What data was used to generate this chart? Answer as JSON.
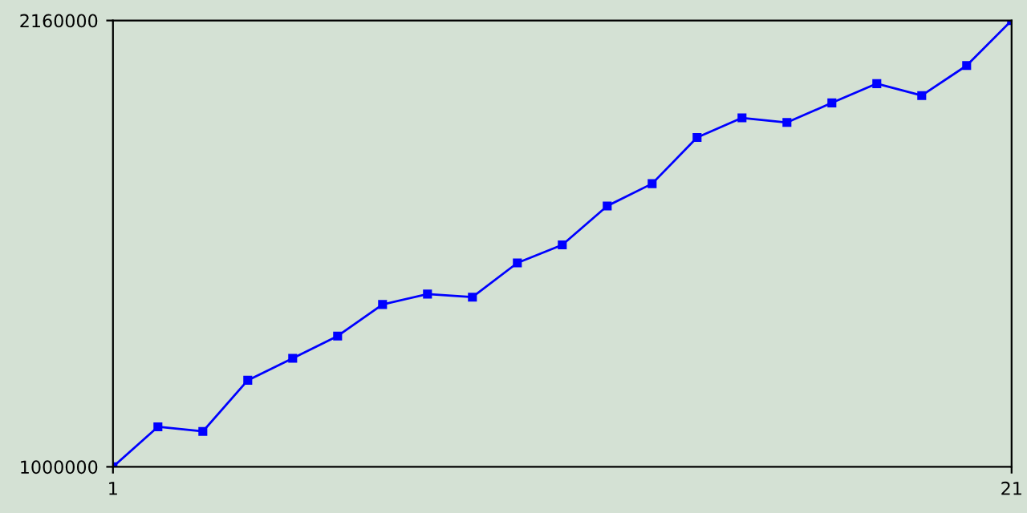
{
  "chart_data": {
    "type": "line",
    "x": [
      1,
      2,
      3,
      4,
      5,
      6,
      7,
      8,
      9,
      10,
      11,
      12,
      13,
      14,
      15,
      16,
      17,
      18,
      19,
      20,
      21
    ],
    "series": [
      {
        "color": "#0000ff",
        "values": [
          1000000,
          1104000,
          1092000,
          1225000,
          1282000,
          1340000,
          1422000,
          1449000,
          1441000,
          1530000,
          1577000,
          1678000,
          1736000,
          1856000,
          1907000,
          1895000,
          1946000,
          1996000,
          1965000,
          2043000,
          2160000
        ]
      }
    ],
    "xlim": [
      1,
      21
    ],
    "xticks": [
      1,
      21
    ],
    "ylim": [
      1000000,
      2160000
    ],
    "yticks": [
      1000000,
      2160000
    ],
    "grid": false,
    "marker": "square",
    "line_style": "solid"
  }
}
